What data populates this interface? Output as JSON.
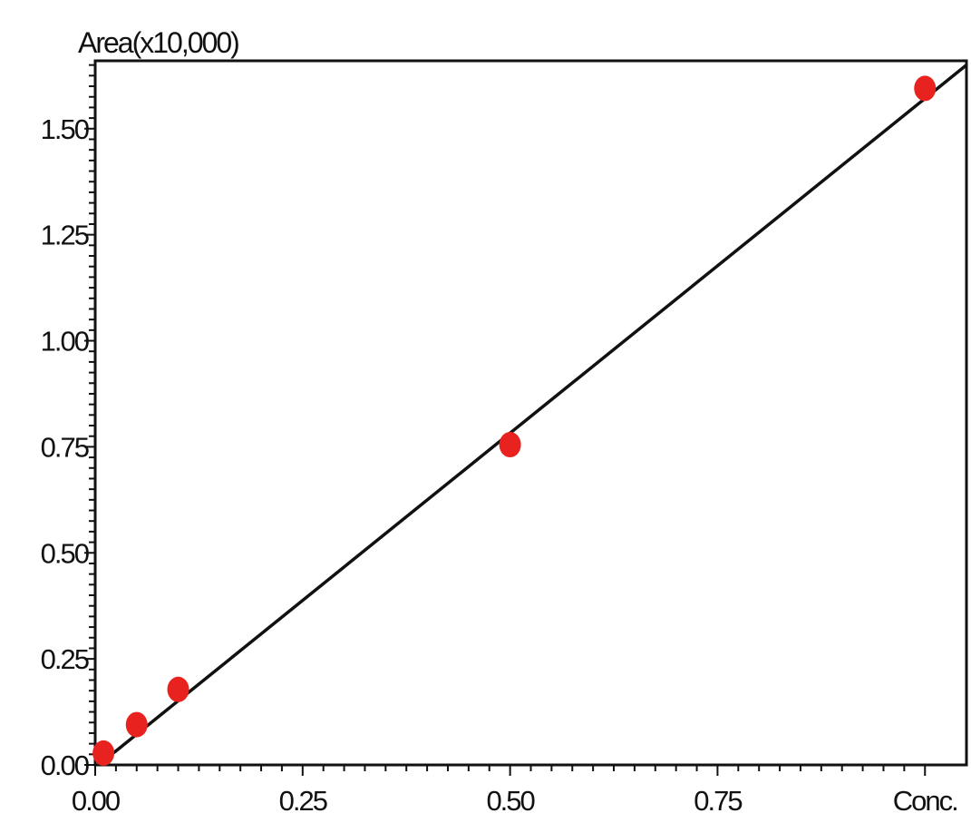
{
  "chart_data": {
    "type": "scatter",
    "ylabel": "Area(x10,000)",
    "xlabel": "Conc.",
    "xlim": [
      0,
      1.05
    ],
    "ylim": [
      0,
      1.66
    ],
    "x_ticks": [
      {
        "value": 0,
        "label": "0.00"
      },
      {
        "value": 0.25,
        "label": "0.25"
      },
      {
        "value": 0.5,
        "label": "0.50"
      },
      {
        "value": 0.75,
        "label": "0.75"
      },
      {
        "value": 1.0,
        "label": "Conc."
      }
    ],
    "y_ticks": [
      {
        "value": 0,
        "label": "0.00"
      },
      {
        "value": 0.25,
        "label": "0.25"
      },
      {
        "value": 0.5,
        "label": "0.50"
      },
      {
        "value": 0.75,
        "label": "0.75"
      },
      {
        "value": 1.0,
        "label": "1.00"
      },
      {
        "value": 1.25,
        "label": "1.25"
      },
      {
        "value": 1.5,
        "label": "1.50"
      }
    ],
    "points": [
      {
        "x": 0.01,
        "y": 0.028
      },
      {
        "x": 0.05,
        "y": 0.095
      },
      {
        "x": 0.1,
        "y": 0.178
      },
      {
        "x": 0.5,
        "y": 0.755
      },
      {
        "x": 1.0,
        "y": 1.595
      }
    ],
    "fit_line": {
      "x": [
        0.02,
        1.05
      ],
      "y": [
        0.025,
        1.65
      ]
    },
    "colors": {
      "points": "#e8231f",
      "line": "#111111",
      "axes": "#111111"
    },
    "grid": false,
    "legend": "none"
  }
}
